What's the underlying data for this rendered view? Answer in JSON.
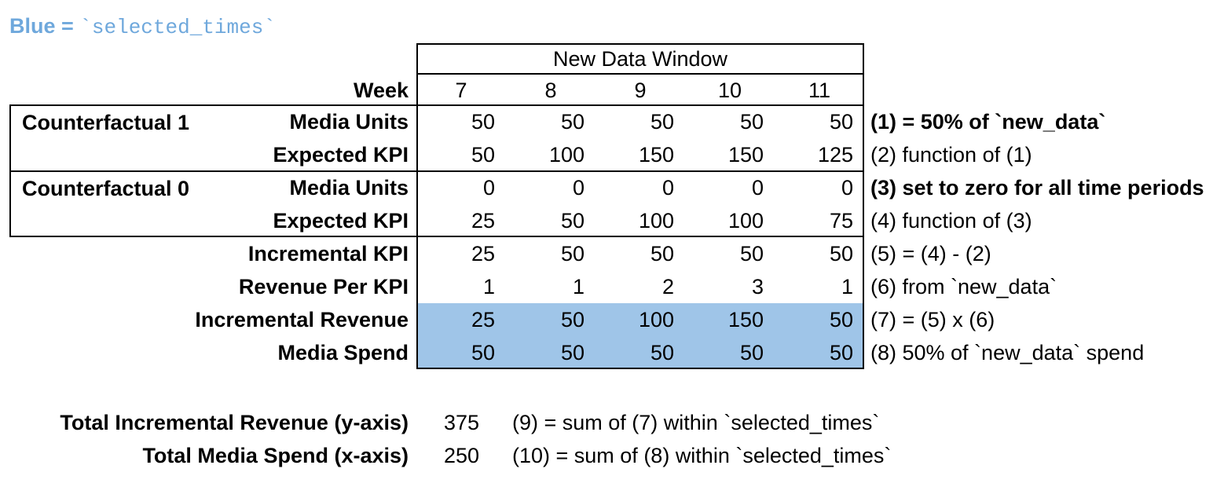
{
  "colors": {
    "highlight": "#9FC5E8",
    "legend_blue": "#6FA8DC",
    "border": "#000000"
  },
  "legend": {
    "prefix": "Blue = ",
    "code": "`selected_times`"
  },
  "table": {
    "window_title": "New Data Window",
    "week_label": "Week",
    "weeks": [
      "7",
      "8",
      "9",
      "10",
      "11"
    ],
    "groups": [
      {
        "label": "Counterfactual 1"
      },
      {
        "label": "Counterfactual 0"
      }
    ],
    "rows": [
      {
        "label": "Media Units",
        "values": [
          "50",
          "50",
          "50",
          "50",
          "50"
        ],
        "note": "(1) = 50% of `new_data`"
      },
      {
        "label": "Expected KPI",
        "values": [
          "50",
          "100",
          "150",
          "150",
          "125"
        ],
        "note": "(2) function of (1)"
      },
      {
        "label": "Media Units",
        "values": [
          "0",
          "0",
          "0",
          "0",
          "0"
        ],
        "note": "(3) set to zero for all time periods"
      },
      {
        "label": "Expected KPI",
        "values": [
          "25",
          "50",
          "100",
          "100",
          "75"
        ],
        "note": "(4) function of (3)"
      },
      {
        "label": "Incremental KPI",
        "values": [
          "25",
          "50",
          "50",
          "50",
          "50"
        ],
        "note": "(5) = (4) - (2)"
      },
      {
        "label": "Revenue Per KPI",
        "values": [
          "1",
          "1",
          "2",
          "3",
          "1"
        ],
        "note": "(6) from `new_data`"
      },
      {
        "label": "Incremental Revenue",
        "values": [
          "25",
          "50",
          "100",
          "150",
          "50"
        ],
        "note": "(7) = (5) x (6)"
      },
      {
        "label": "Media Spend",
        "values": [
          "50",
          "50",
          "50",
          "50",
          "50"
        ],
        "note": "(8) 50% of `new_data` spend"
      }
    ]
  },
  "totals": [
    {
      "label": "Total Incremental Revenue (y-axis)",
      "value": "375",
      "note": "(9) = sum of (7) within `selected_times`"
    },
    {
      "label": "Total Media Spend (x-axis)",
      "value": "250",
      "note": "(10) = sum of (8) within `selected_times`"
    }
  ]
}
